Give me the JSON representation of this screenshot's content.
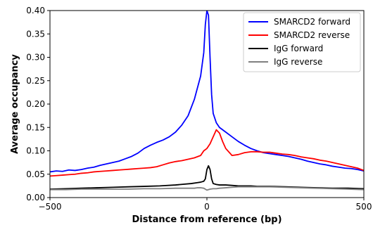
{
  "chart_data": {
    "type": "line",
    "xlabel": "Distance from reference (bp)",
    "ylabel": "Average occupancy",
    "xlim": [
      -500,
      500
    ],
    "ylim": [
      0,
      0.4
    ],
    "x_ticks": [
      -500,
      0,
      500
    ],
    "x_tick_labels": [
      "−500",
      "0",
      "500"
    ],
    "y_ticks": [
      0.0,
      0.05,
      0.1,
      0.15,
      0.2,
      0.25,
      0.3,
      0.35,
      0.4
    ],
    "y_tick_labels": [
      "0.00",
      "0.05",
      "0.10",
      "0.15",
      "0.20",
      "0.25",
      "0.30",
      "0.35",
      "0.40"
    ],
    "grid": false,
    "legend_position": "top-right",
    "series": [
      {
        "name": "SMARCD2 forward",
        "color": "#0000ff",
        "x": [
          -500,
          -480,
          -460,
          -440,
          -420,
          -400,
          -380,
          -360,
          -340,
          -320,
          -300,
          -280,
          -260,
          -240,
          -220,
          -200,
          -180,
          -160,
          -140,
          -120,
          -100,
          -80,
          -60,
          -40,
          -30,
          -20,
          -10,
          -5,
          0,
          5,
          10,
          15,
          20,
          30,
          40,
          60,
          80,
          100,
          120,
          140,
          160,
          180,
          200,
          220,
          240,
          260,
          280,
          300,
          320,
          340,
          360,
          380,
          400,
          420,
          440,
          460,
          480,
          500
        ],
        "y": [
          0.055,
          0.057,
          0.056,
          0.059,
          0.058,
          0.06,
          0.063,
          0.065,
          0.069,
          0.072,
          0.075,
          0.078,
          0.083,
          0.088,
          0.095,
          0.105,
          0.112,
          0.118,
          0.123,
          0.13,
          0.14,
          0.155,
          0.175,
          0.21,
          0.235,
          0.26,
          0.31,
          0.37,
          0.4,
          0.39,
          0.3,
          0.22,
          0.18,
          0.16,
          0.15,
          0.14,
          0.13,
          0.12,
          0.112,
          0.105,
          0.1,
          0.096,
          0.094,
          0.092,
          0.09,
          0.088,
          0.085,
          0.082,
          0.078,
          0.075,
          0.072,
          0.07,
          0.067,
          0.065,
          0.063,
          0.062,
          0.06,
          0.057
        ]
      },
      {
        "name": "SMARCD2 reverse",
        "color": "#ff0000",
        "x": [
          -500,
          -480,
          -460,
          -440,
          -420,
          -400,
          -380,
          -360,
          -340,
          -320,
          -300,
          -280,
          -260,
          -240,
          -220,
          -200,
          -180,
          -160,
          -140,
          -120,
          -100,
          -80,
          -60,
          -40,
          -20,
          -10,
          0,
          10,
          20,
          30,
          40,
          50,
          60,
          80,
          100,
          120,
          140,
          160,
          180,
          200,
          220,
          240,
          260,
          280,
          300,
          320,
          340,
          360,
          380,
          400,
          420,
          440,
          460,
          480,
          500
        ],
        "y": [
          0.046,
          0.047,
          0.048,
          0.049,
          0.05,
          0.052,
          0.053,
          0.055,
          0.056,
          0.057,
          0.058,
          0.059,
          0.06,
          0.061,
          0.062,
          0.063,
          0.064,
          0.066,
          0.07,
          0.074,
          0.077,
          0.079,
          0.082,
          0.085,
          0.09,
          0.1,
          0.105,
          0.115,
          0.13,
          0.145,
          0.138,
          0.12,
          0.105,
          0.09,
          0.092,
          0.096,
          0.098,
          0.098,
          0.097,
          0.097,
          0.095,
          0.093,
          0.092,
          0.09,
          0.087,
          0.085,
          0.083,
          0.08,
          0.078,
          0.075,
          0.072,
          0.069,
          0.066,
          0.063,
          0.058
        ]
      },
      {
        "name": "IgG forward",
        "color": "#000000",
        "x": [
          -500,
          -450,
          -400,
          -350,
          -300,
          -250,
          -200,
          -150,
          -100,
          -50,
          -30,
          -20,
          -10,
          -5,
          0,
          5,
          10,
          15,
          20,
          30,
          40,
          60,
          80,
          100,
          120,
          140,
          160,
          180,
          200,
          250,
          300,
          350,
          400,
          450,
          500
        ],
        "y": [
          0.018,
          0.019,
          0.02,
          0.021,
          0.022,
          0.023,
          0.024,
          0.025,
          0.027,
          0.03,
          0.032,
          0.033,
          0.035,
          0.04,
          0.06,
          0.068,
          0.06,
          0.04,
          0.03,
          0.028,
          0.027,
          0.027,
          0.026,
          0.025,
          0.025,
          0.025,
          0.024,
          0.024,
          0.024,
          0.023,
          0.022,
          0.021,
          0.02,
          0.02,
          0.019
        ]
      },
      {
        "name": "IgG reverse",
        "color": "#808080",
        "x": [
          -500,
          -450,
          -400,
          -350,
          -300,
          -250,
          -200,
          -150,
          -100,
          -60,
          -40,
          -30,
          -20,
          -10,
          0,
          10,
          20,
          30,
          40,
          60,
          80,
          100,
          150,
          200,
          250,
          300,
          350,
          400,
          450,
          500
        ],
        "y": [
          0.017,
          0.017,
          0.018,
          0.018,
          0.018,
          0.018,
          0.019,
          0.019,
          0.02,
          0.02,
          0.02,
          0.021,
          0.021,
          0.02,
          0.016,
          0.018,
          0.019,
          0.019,
          0.02,
          0.021,
          0.022,
          0.023,
          0.023,
          0.023,
          0.022,
          0.021,
          0.02,
          0.019,
          0.018,
          0.017
        ]
      }
    ]
  }
}
